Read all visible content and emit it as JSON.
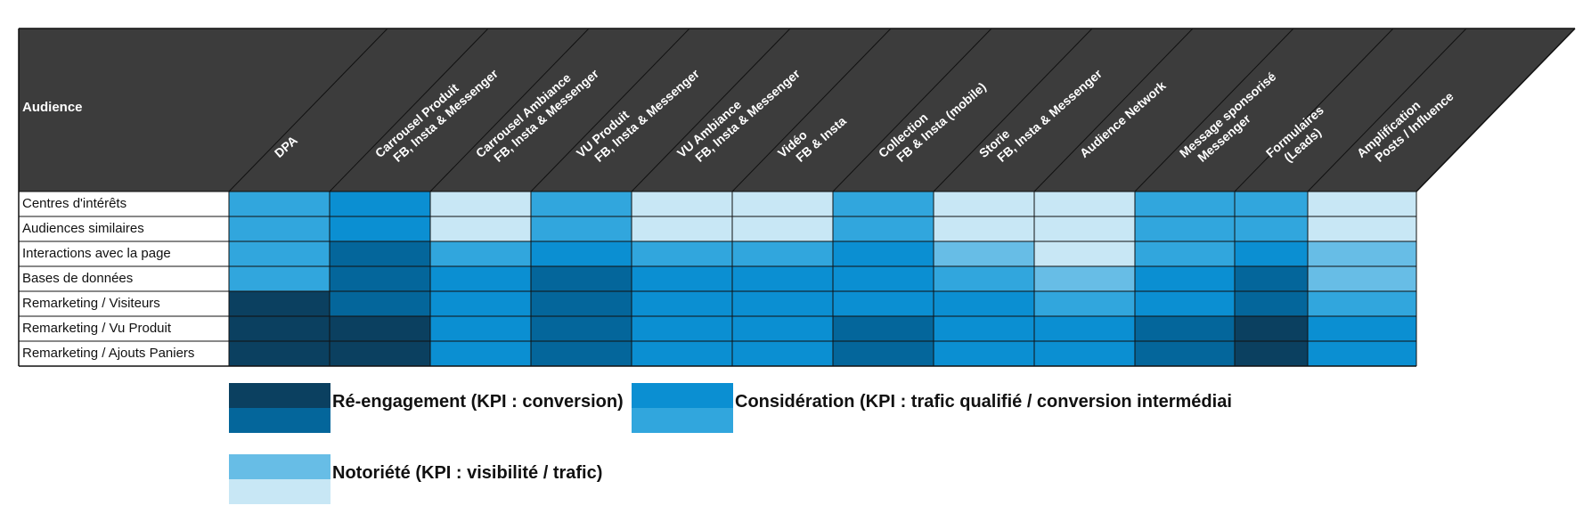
{
  "table": {
    "corner_label": "Audience",
    "columns": [
      {
        "lines": [
          "DPA"
        ]
      },
      {
        "lines": [
          "Carrousel Produit",
          "FB, Insta & Messenger"
        ]
      },
      {
        "lines": [
          "Carrousel Ambiance",
          "FB, Insta & Messenger"
        ]
      },
      {
        "lines": [
          "VU Produit",
          "FB, Insta & Messenger"
        ]
      },
      {
        "lines": [
          "VU Ambiance",
          "FB, Insta & Messenger"
        ]
      },
      {
        "lines": [
          "Vidéo",
          "FB & Insta"
        ]
      },
      {
        "lines": [
          "Collection",
          "FB & Insta (mobile)"
        ]
      },
      {
        "lines": [
          "Storie",
          "FB, Insta & Messenger"
        ]
      },
      {
        "lines": [
          "Audience Network"
        ]
      },
      {
        "lines": [
          "Message sponsorisé",
          "Messenger"
        ]
      },
      {
        "lines": [
          "Formulaires",
          "(Leads)"
        ]
      },
      {
        "lines": [
          "Amplification",
          "Posts / Influence"
        ]
      }
    ],
    "rows": [
      "Centres d'intérêts",
      "Audiences similaires",
      "Interactions avec la page",
      "Bases de données",
      "Remarketing / Visiteurs",
      "Remarketing / Vu Produit",
      "Remarketing / Ajouts Paniers"
    ],
    "levels": [
      [
        4,
        3,
        6,
        4,
        6,
        6,
        4,
        6,
        6,
        4,
        4,
        6
      ],
      [
        4,
        3,
        6,
        4,
        6,
        6,
        4,
        6,
        6,
        4,
        4,
        6
      ],
      [
        4,
        2,
        4,
        3,
        4,
        4,
        3,
        5,
        6,
        4,
        3,
        5
      ],
      [
        4,
        2,
        3,
        2,
        3,
        3,
        3,
        4,
        5,
        3,
        2,
        5
      ],
      [
        1,
        2,
        3,
        2,
        3,
        3,
        3,
        3,
        4,
        3,
        2,
        4
      ],
      [
        1,
        1,
        3,
        2,
        3,
        3,
        2,
        3,
        3,
        2,
        1,
        3
      ],
      [
        1,
        1,
        3,
        2,
        3,
        3,
        2,
        3,
        3,
        2,
        1,
        3
      ]
    ]
  },
  "colors": {
    "header_bg": "#3c3c3c",
    "level_1": "#0b4060",
    "level_2": "#04669b",
    "level_3": "#0b8fd2",
    "level_4": "#31a6dd",
    "level_5": "#67bde6",
    "level_6": "#c8e7f5"
  },
  "legend": [
    {
      "label": "Ré-engagement (KPI : conversion)",
      "colors": [
        "#0b4060",
        "#04669b"
      ]
    },
    {
      "label": "Considération (KPI : trafic qualifié / conversion intermédiai",
      "colors": [
        "#0b8fd2",
        "#31a6dd"
      ]
    },
    {
      "label": "Notoriété (KPI : visibilité / trafic)",
      "colors": [
        "#67bde6",
        "#c8e7f5"
      ]
    }
  ]
}
